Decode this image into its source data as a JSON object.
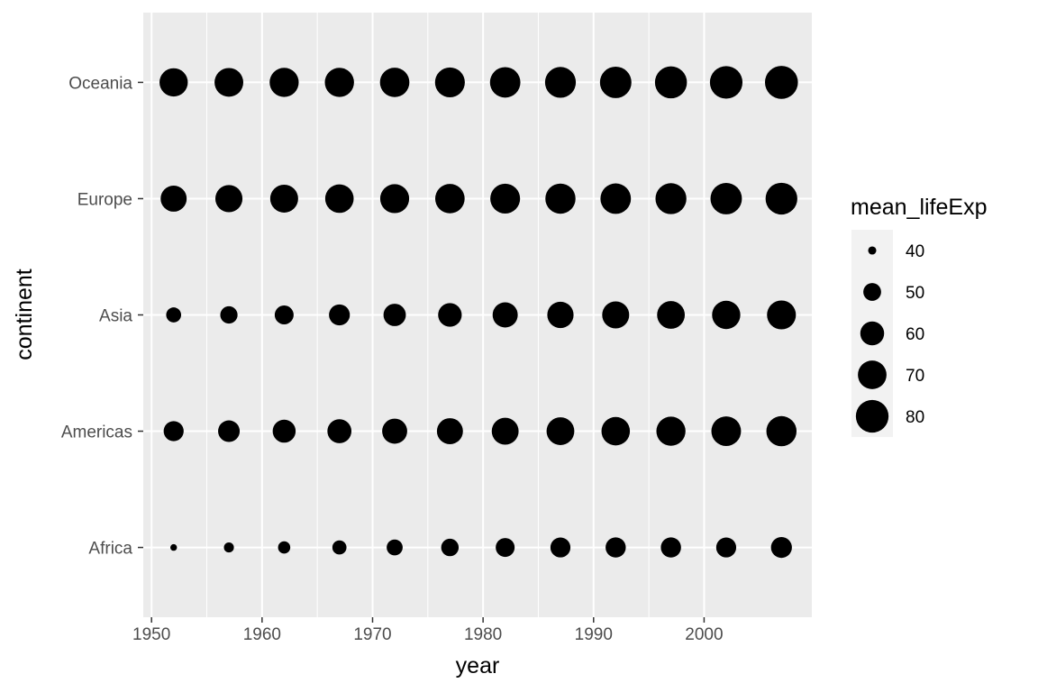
{
  "chart_data": {
    "type": "scatter",
    "title": "",
    "xlabel": "year",
    "ylabel": "continent",
    "xlim": [
      1949.25,
      2009.75
    ],
    "x_ticks": [
      1950,
      1960,
      1970,
      1980,
      1990,
      2000
    ],
    "x_tick_labels": [
      "1950",
      "1960",
      "1970",
      "1980",
      "1990",
      "2000"
    ],
    "categories": [
      "Africa",
      "Americas",
      "Asia",
      "Europe",
      "Oceania"
    ],
    "x": [
      1952,
      1957,
      1962,
      1967,
      1972,
      1977,
      1982,
      1987,
      1992,
      1997,
      2002,
      2007
    ],
    "size_variable": "mean_lifeExp",
    "series": [
      {
        "name": "Africa",
        "values": [
          39.1,
          41.3,
          43.3,
          45.3,
          47.5,
          49.6,
          51.6,
          53.3,
          53.6,
          53.6,
          53.3,
          54.8
        ]
      },
      {
        "name": "Americas",
        "values": [
          53.3,
          56.0,
          58.4,
          60.4,
          62.4,
          64.4,
          66.2,
          68.1,
          69.6,
          71.2,
          72.4,
          73.6
        ]
      },
      {
        "name": "Asia",
        "values": [
          46.3,
          49.3,
          51.6,
          54.7,
          57.3,
          59.6,
          62.6,
          64.9,
          66.5,
          68.0,
          69.2,
          70.7
        ]
      },
      {
        "name": "Europe",
        "values": [
          64.4,
          66.7,
          68.5,
          69.7,
          70.8,
          71.9,
          72.8,
          73.6,
          74.4,
          75.5,
          76.7,
          77.6
        ]
      },
      {
        "name": "Oceania",
        "values": [
          69.3,
          70.3,
          71.1,
          71.3,
          71.9,
          72.9,
          74.3,
          75.3,
          76.9,
          78.2,
          79.7,
          80.7
        ]
      }
    ],
    "legend": {
      "title": "mean_lifeExp",
      "placement": "right",
      "breaks": [
        40,
        50,
        60,
        70,
        80
      ],
      "labels": [
        "40",
        "50",
        "60",
        "70",
        "80"
      ]
    },
    "size_range": [
      39.1,
      80.7
    ],
    "grid": true,
    "colors": {
      "panel": "#ebebeb",
      "grid": "#ffffff",
      "point": "#000000",
      "tick_text": "#4d4d4d"
    }
  }
}
